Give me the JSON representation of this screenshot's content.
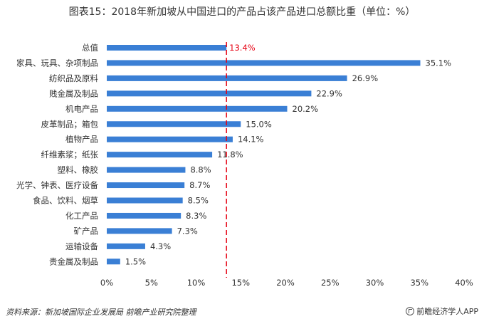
{
  "title": "图表15：2018年新加坡从中国进口的产品占该产品进口总额比重（单位：%）",
  "footer": {
    "source": "资料来源：新加坡国际企业发展局  前瞻产业研究院整理",
    "brand": "前瞻经济学人APP"
  },
  "colors": {
    "bar": "#3a7fd5",
    "highlight": "#e60012",
    "text": "#333333"
  },
  "chart_data": {
    "type": "bar",
    "orientation": "horizontal",
    "categories": [
      "总值",
      "家具、玩具、杂项制品",
      "纺织品及原料",
      "贱金属及制品",
      "机电产品",
      "皮革制品；箱包",
      "植物产品",
      "纤维素浆；纸张",
      "塑料、橡胶",
      "光学、钟表、医疗设备",
      "食品、饮料、烟草",
      "化工产品",
      "矿产品",
      "运输设备",
      "贵金属及制品"
    ],
    "values": [
      13.4,
      35.1,
      26.9,
      22.9,
      20.2,
      15.0,
      14.1,
      11.8,
      8.8,
      8.7,
      8.5,
      8.3,
      7.3,
      4.3,
      1.5
    ],
    "value_labels": [
      "13.4%",
      "35.1%",
      "26.9%",
      "22.9%",
      "20.2%",
      "15.0%",
      "14.1%",
      "11.8%",
      "8.8%",
      "8.7%",
      "8.5%",
      "8.3%",
      "7.3%",
      "4.3%",
      "1.5%"
    ],
    "highlight_index": 0,
    "reference_line": 13.4,
    "xlim": [
      0,
      40
    ],
    "xticks": [
      0,
      5,
      10,
      15,
      20,
      25,
      30,
      35,
      40
    ],
    "xtick_labels": [
      "0%",
      "5%",
      "10%",
      "15%",
      "20%",
      "25%",
      "30%",
      "35%",
      "40%"
    ],
    "grid": false,
    "xlabel": "",
    "ylabel": ""
  }
}
